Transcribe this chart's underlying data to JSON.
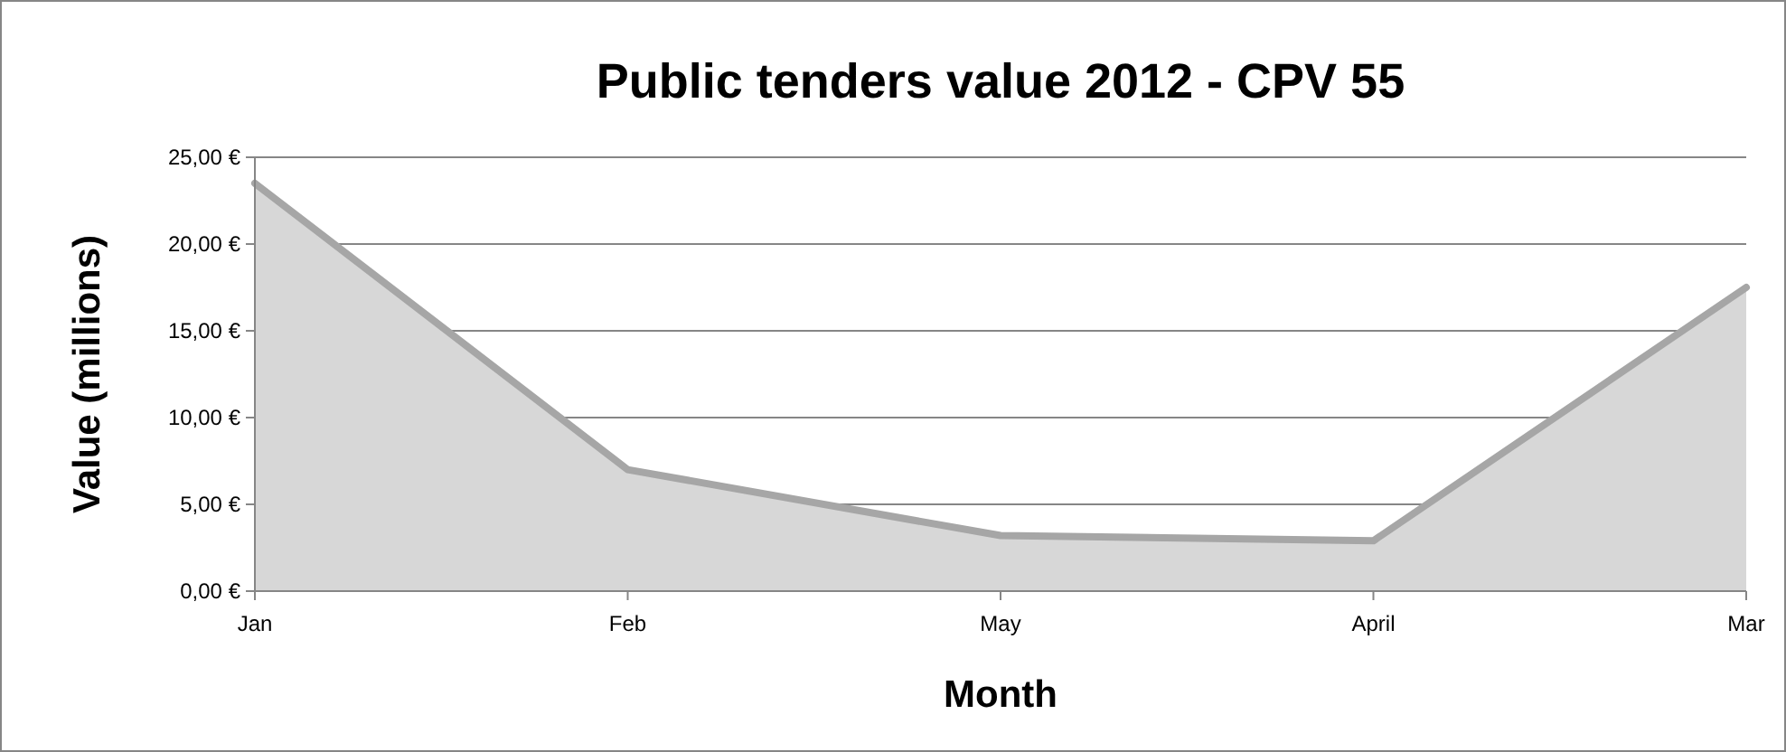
{
  "chart_data": {
    "type": "area",
    "title": "Public tenders value 2012 - CPV 55",
    "xlabel": "Month",
    "ylabel": "Value (millions)",
    "categories": [
      "Jan",
      "Feb",
      "May",
      "April",
      "Mar"
    ],
    "series": [
      {
        "color": "#a6a6a6",
        "values": [
          23.5,
          7.0,
          3.2,
          2.9,
          17.5
        ]
      }
    ],
    "ylim": [
      0,
      25
    ],
    "yticks": [
      {
        "value": 0,
        "label": "0,00 €"
      },
      {
        "value": 5,
        "label": "5,00 €"
      },
      {
        "value": 10,
        "label": "10,00 €"
      },
      {
        "value": 15,
        "label": "15,00 €"
      },
      {
        "value": 20,
        "label": "20,00 €"
      },
      {
        "value": 25,
        "label": "25,00 €"
      }
    ],
    "grid": "y"
  }
}
